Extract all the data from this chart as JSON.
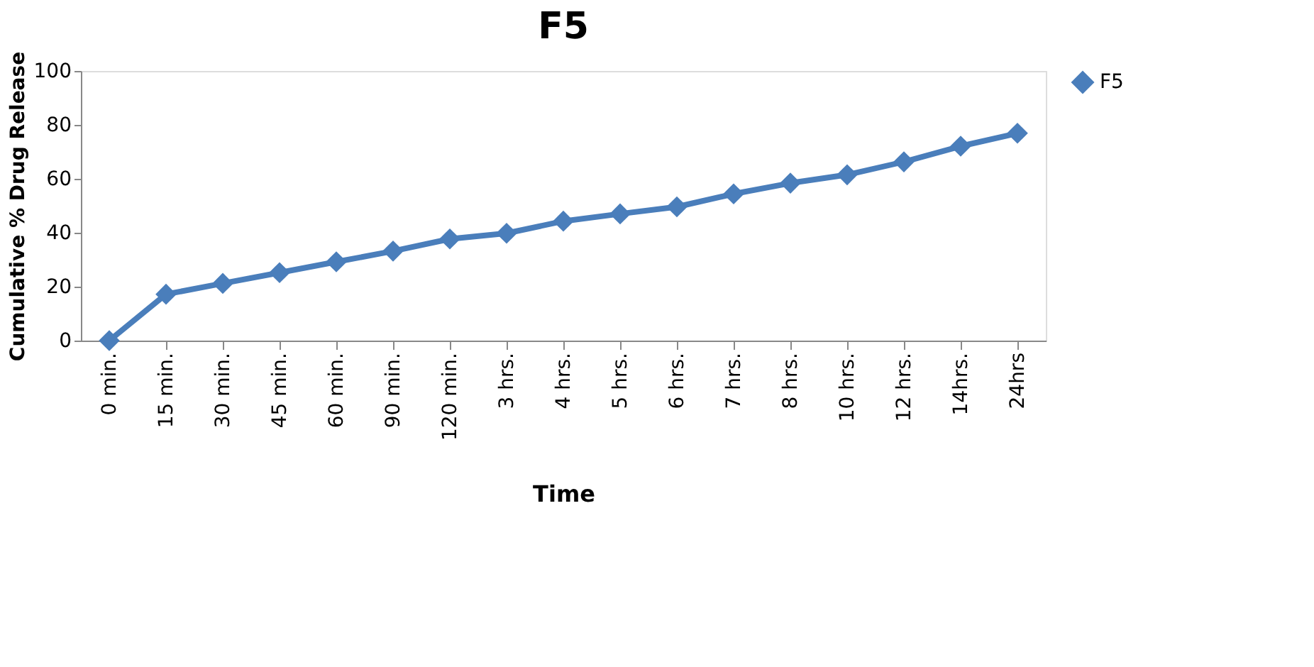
{
  "chart_data": {
    "type": "line",
    "title": "F5",
    "xlabel": "Time",
    "ylabel": "Cumulative % Drug Release",
    "categories": [
      "0 min.",
      "15 min.",
      "30 min.",
      "45 min.",
      "60 min.",
      "90 min.",
      "120 min.",
      "3 hrs.",
      "4 hrs.",
      "5 hrs.",
      "6 hrs.",
      "7 hrs.",
      "8 hrs.",
      "10 hrs.",
      "12 hrs.",
      "14hrs.",
      "24hrs"
    ],
    "series": [
      {
        "name": "F5",
        "color": "#4a7ebb",
        "values": [
          0,
          17.2,
          21.2,
          25.2,
          29.2,
          33.2,
          37.7,
          39.8,
          44.3,
          47,
          49.6,
          54.4,
          58.4,
          61.5,
          66.3,
          72.1,
          76.9
        ]
      }
    ],
    "ylim": [
      0,
      100
    ],
    "yticks": [
      0,
      20,
      40,
      60,
      80,
      100
    ],
    "grid": false,
    "legend": "right",
    "marker": "diamond",
    "line_style": "solid"
  }
}
